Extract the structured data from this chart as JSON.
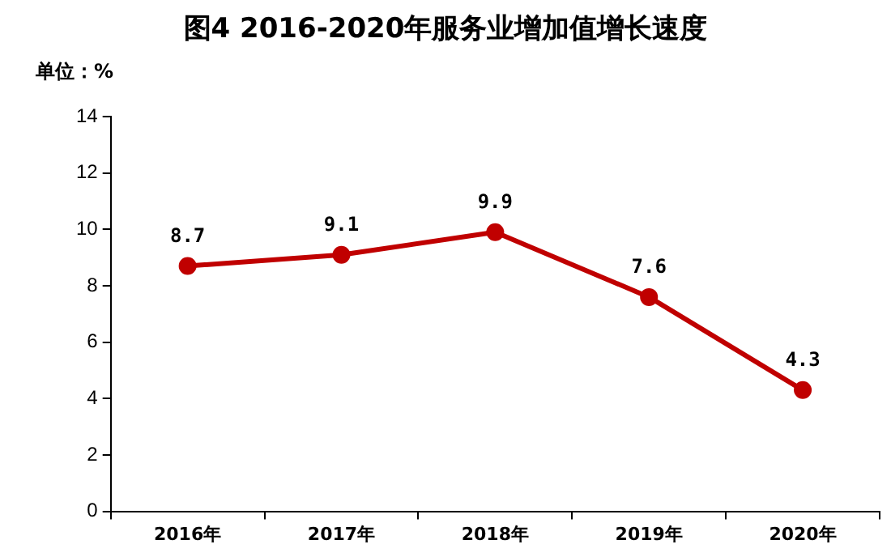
{
  "chart_data": {
    "type": "line",
    "title": "图4  2016-2020年服务业增加值增长速度",
    "ylabel": "单位：%",
    "categories": [
      "2016年",
      "2017年",
      "2018年",
      "2019年",
      "2020年"
    ],
    "series": [
      {
        "color": "#c00000",
        "values": [
          8.7,
          9.1,
          9.9,
          7.6,
          4.3
        ]
      }
    ],
    "ylim": [
      0,
      14
    ],
    "yticks": [
      0,
      2,
      4,
      6,
      8,
      10,
      12,
      14
    ],
    "grid": false,
    "legend": false,
    "marker": "circle",
    "line_style": "solid",
    "data_labels": true
  }
}
